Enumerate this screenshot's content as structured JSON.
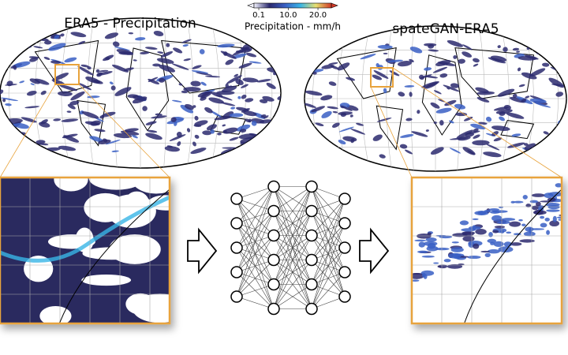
{
  "panels": {
    "left_title": "ERA5 - Precipitation",
    "right_title": "spateGAN-ERA5"
  },
  "colorbar": {
    "label": "Precipitation - mm/h",
    "range": [
      -1.5,
      24.5
    ],
    "extend": "both",
    "ticks": [
      0.1,
      {
        "value": 10,
        "label": "10.0"
      },
      {
        "value": 20,
        "label": "20.0"
      }
    ],
    "colors": [
      "#f4f4ff",
      "#2b2a6e",
      "#3a5fc4",
      "#39b5e6",
      "#e8e070",
      "#d23a28"
    ]
  }
}
